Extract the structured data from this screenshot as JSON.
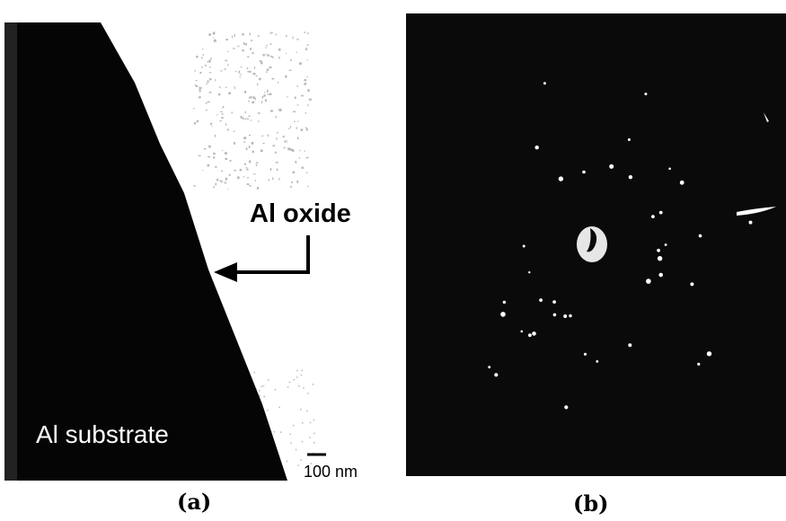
{
  "panel_a": {
    "caption": "(a)",
    "oxide_label": "Al oxide",
    "substrate_label": "Al substrate",
    "scale_bar_label": "100 nm"
  },
  "panel_b": {
    "caption": "(b)"
  },
  "colors": {
    "substrate": "#050505",
    "oxide_background": "#ffffff",
    "diffraction_background": "#0a0a0a",
    "diffraction_spots": "#ffffff"
  }
}
